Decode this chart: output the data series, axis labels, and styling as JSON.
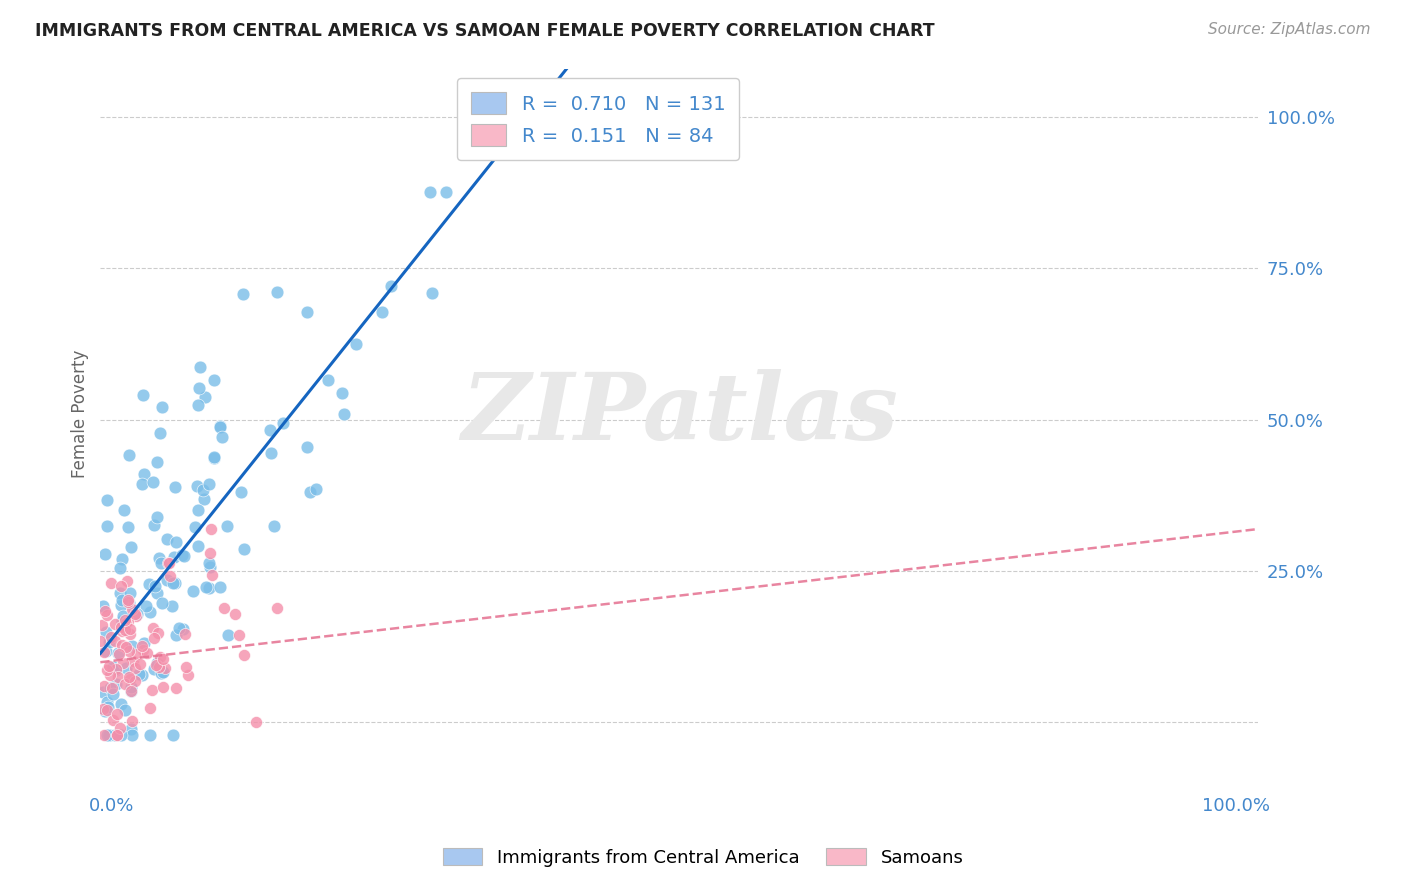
{
  "title": "IMMIGRANTS FROM CENTRAL AMERICA VS SAMOAN FEMALE POVERTY CORRELATION CHART",
  "source": "Source: ZipAtlas.com",
  "ylabel": "Female Poverty",
  "legend_label1": "R =  0.710   N = 131",
  "legend_label2": "R =  0.151   N = 84",
  "legend_color1": "#a8c8f0",
  "legend_color2": "#f9b8c8",
  "scatter_color1": "#7abde8",
  "scatter_color2": "#f48faa",
  "line_color1": "#1565c0",
  "line_color2": "#e57090",
  "watermark": "ZIPatlas",
  "background_color": "#ffffff",
  "grid_color": "#cccccc",
  "title_color": "#222222",
  "axis_label_color": "#4488cc",
  "R1": 0.71,
  "N1": 131,
  "R2": 0.151,
  "N2": 84
}
